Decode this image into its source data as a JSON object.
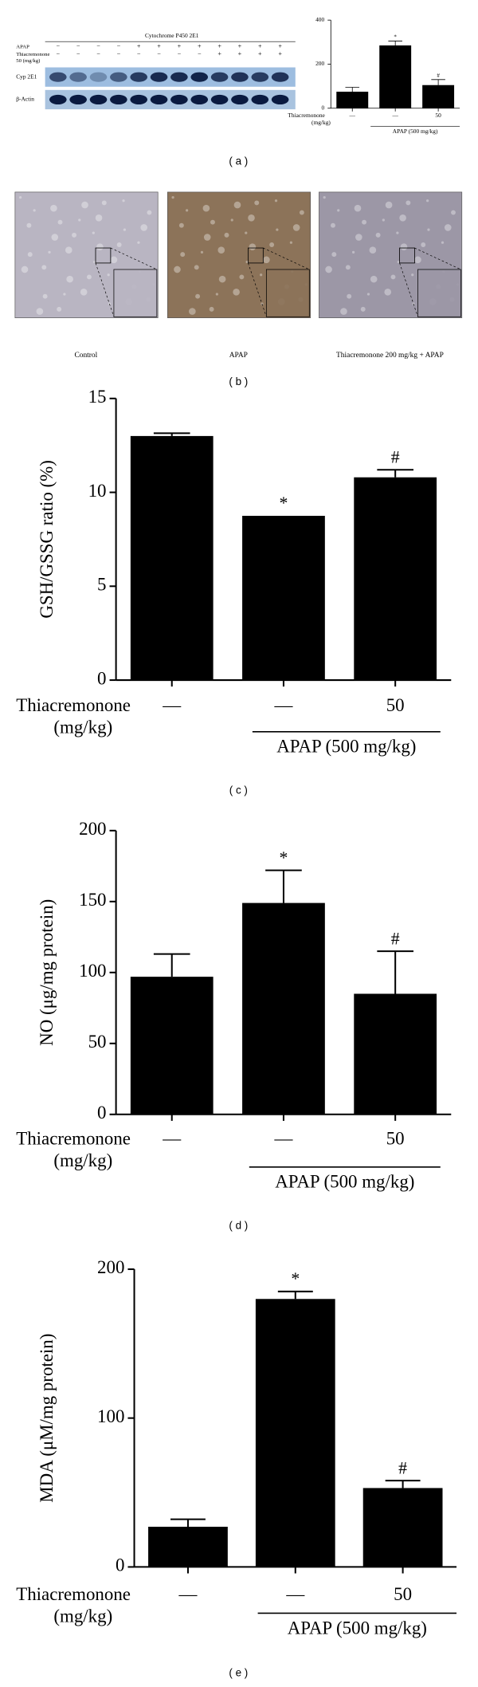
{
  "chart_data": [
    {
      "type": "bar",
      "panel_label": "( a )",
      "color": "#000000",
      "categories": [
        "—",
        "—",
        "50"
      ],
      "values": [
        75,
        285,
        105
      ],
      "errors": [
        20,
        20,
        25
      ],
      "annotations": [
        null,
        "*",
        "#"
      ],
      "row_label": [
        "Thiacremonone",
        "(mg/kg)"
      ],
      "group_label": "APAP (500 mg/kg)",
      "ylim": [
        0,
        400
      ],
      "yticks": [
        0,
        200,
        400
      ]
    },
    {
      "type": "bar",
      "panel_label": "( c )",
      "color": "#000000",
      "ylabel": "GSH/GSSG ratio (%)",
      "categories": [
        "—",
        "—",
        "50"
      ],
      "values": [
        13.0,
        8.75,
        10.8
      ],
      "errors": [
        0.15,
        null,
        0.4
      ],
      "annotations": [
        null,
        "*",
        "#"
      ],
      "row_label": [
        "Thiacremonone",
        "(mg/kg)"
      ],
      "group_label": "APAP (500 mg/kg)",
      "ylim": [
        0,
        15
      ],
      "yticks": [
        0,
        5,
        10,
        15
      ]
    },
    {
      "type": "bar",
      "panel_label": "( d )",
      "color": "#000000",
      "ylabel": "NO (μg/mg protein)",
      "categories": [
        "—",
        "—",
        "50"
      ],
      "values": [
        97,
        149,
        85
      ],
      "errors": [
        16,
        23,
        30
      ],
      "annotations": [
        null,
        "*",
        "#"
      ],
      "row_label": [
        "Thiacremonone",
        "(mg/kg)"
      ],
      "group_label": "APAP (500 mg/kg)",
      "ylim": [
        0,
        200
      ],
      "yticks": [
        0,
        50,
        100,
        150,
        200
      ]
    },
    {
      "type": "bar",
      "panel_label": "( e )",
      "color": "#000000",
      "ylabel": "MDA (μM/mg protein)",
      "categories": [
        "—",
        "—",
        "50"
      ],
      "values": [
        27,
        180,
        53
      ],
      "errors": [
        5,
        5,
        5
      ],
      "annotations": [
        null,
        "*",
        "#"
      ],
      "row_label": [
        "Thiacremonone",
        "(mg/kg)"
      ],
      "group_label": "APAP (500 mg/kg)",
      "ylim": [
        0,
        200
      ],
      "yticks": [
        0,
        100,
        200
      ]
    }
  ],
  "blot": {
    "title": "Cytochrome P450 2E1",
    "rows": [
      {
        "label": [
          "APAP"
        ],
        "signs": [
          "−",
          "−",
          "−",
          "−",
          "+",
          "+",
          "+",
          "+",
          "+",
          "+",
          "+",
          "+"
        ]
      },
      {
        "label": [
          "Thiacremonone",
          "50 (mg/kg)"
        ],
        "signs": [
          "−",
          "−",
          "−",
          "−",
          "−",
          "−",
          "−",
          "−",
          "+",
          "+",
          "+",
          "+"
        ]
      }
    ],
    "bands": [
      "Cyp 2E1",
      "β-Actin"
    ]
  },
  "micrographs": {
    "captions": [
      "Control",
      "APAP",
      "Thiacremonone 200 mg/kg + APAP"
    ],
    "panel_label": "( b )"
  }
}
